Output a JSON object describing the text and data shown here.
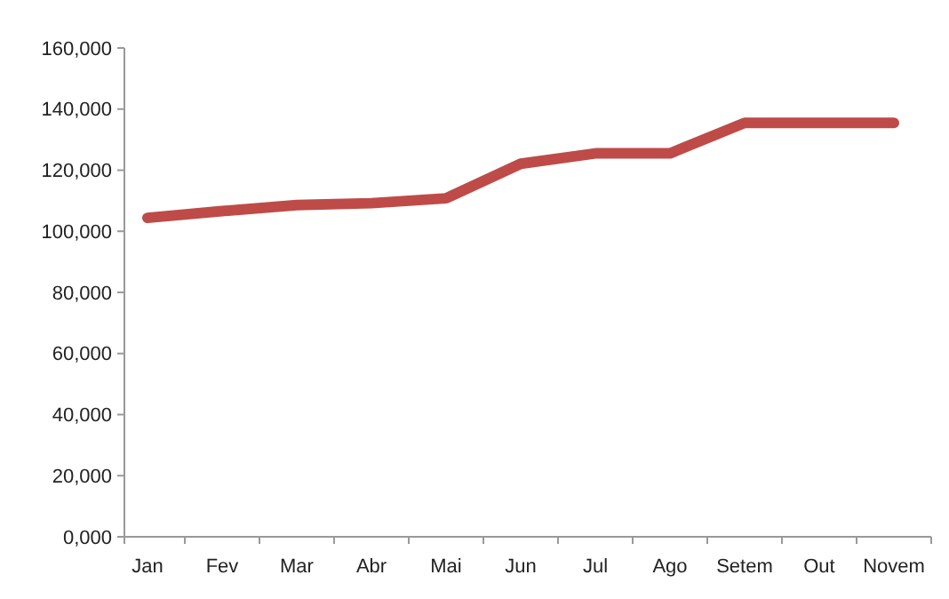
{
  "chart_data": {
    "type": "line",
    "categories": [
      "Jan",
      "Fev",
      "Mar",
      "Abr",
      "Mai",
      "Jun",
      "Jul",
      "Ago",
      "Setem",
      "Out",
      "Novem"
    ],
    "series": [
      {
        "color": "#be4b48",
        "values": [
          104400,
          106600,
          108600,
          109200,
          110800,
          122100,
          125500,
          125500,
          135500,
          135500,
          135500
        ]
      }
    ],
    "ylim": [
      0,
      160000
    ],
    "yticks": [
      {
        "value": 0,
        "label": "0,000"
      },
      {
        "value": 20000,
        "label": "20,000"
      },
      {
        "value": 40000,
        "label": "40,000"
      },
      {
        "value": 60000,
        "label": "60,000"
      },
      {
        "value": 80000,
        "label": "80,000"
      },
      {
        "value": 100000,
        "label": "100,000"
      },
      {
        "value": 120000,
        "label": "120,000"
      },
      {
        "value": 140000,
        "label": "140,000"
      },
      {
        "value": 160000,
        "label": "160,000"
      }
    ],
    "grid": false,
    "marker": "none",
    "line_style": "solid"
  }
}
